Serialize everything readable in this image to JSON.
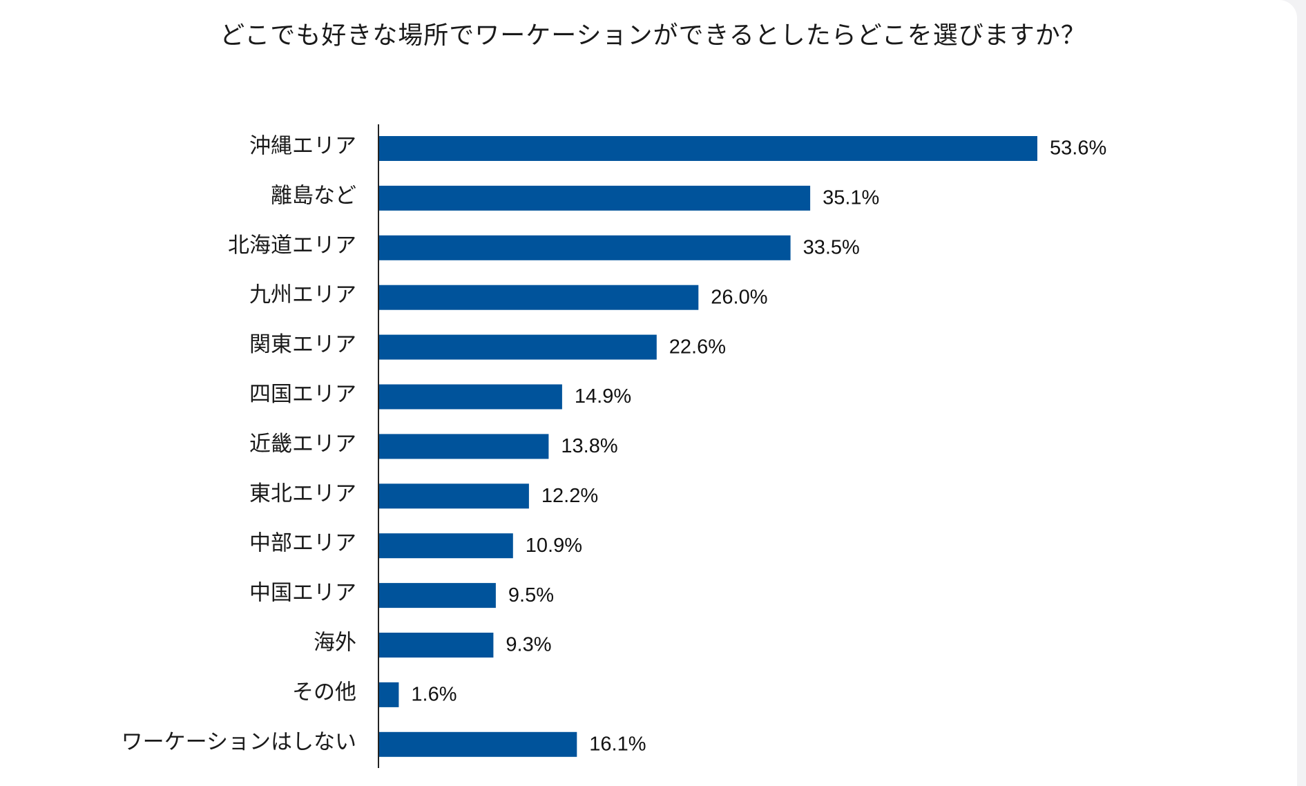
{
  "chart_data": {
    "type": "bar",
    "orientation": "horizontal",
    "title": "どこでも好きな場所でワーケーションができるとしたらどこを選びますか？",
    "xlabel": "",
    "ylabel": "",
    "xlim": [
      0,
      60
    ],
    "grid": false,
    "legend": "none",
    "bar_color": "#00539b",
    "categories": [
      "沖縄エリア",
      "離島など",
      "北海道エリア",
      "九州エリア",
      "関東エリア",
      "四国エリア",
      "近畿エリア",
      "東北エリア",
      "中部エリア",
      "中国エリア",
      "海外",
      "その他",
      "ワーケーションはしない"
    ],
    "values": [
      53.6,
      35.1,
      33.5,
      26.0,
      22.6,
      14.9,
      13.8,
      12.2,
      10.9,
      9.5,
      9.3,
      1.6,
      16.1
    ],
    "value_labels": [
      "53.6%",
      "35.1%",
      "33.5%",
      "26.0%",
      "22.6%",
      "14.9%",
      "13.8%",
      "12.2%",
      "10.9%",
      "9.5%",
      "9.3%",
      "1.6%",
      "16.1%"
    ]
  }
}
